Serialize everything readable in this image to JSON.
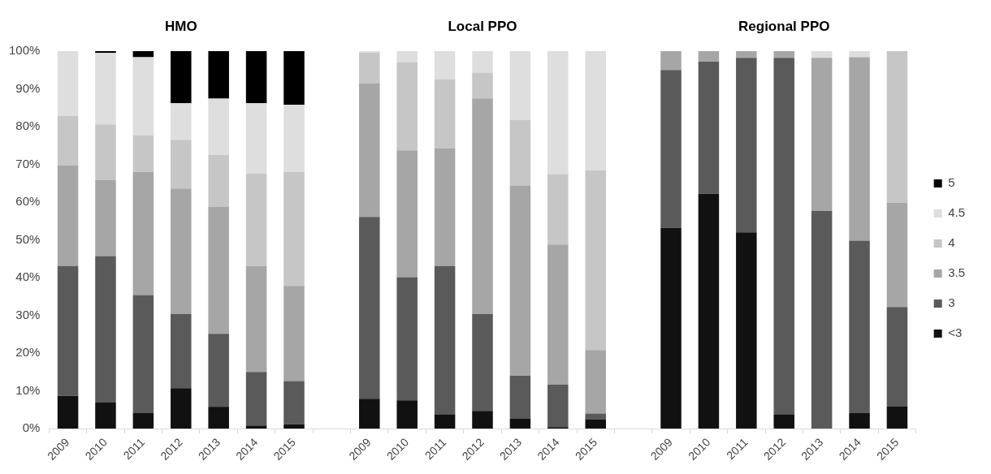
{
  "chart_data": {
    "type": "bar",
    "stacked": true,
    "categories": [
      "2009",
      "2010",
      "2011",
      "2012",
      "2013",
      "2014",
      "2015",
      null,
      "2009",
      "2010",
      "2011",
      "2012",
      "2013",
      "2014",
      "2015",
      null,
      "2009",
      "2010",
      "2011",
      "2012",
      "2013",
      "2014",
      "2015"
    ],
    "series": [
      {
        "name": "<3",
        "color": "#111111",
        "values": [
          8.7,
          6.9,
          4.1,
          10.7,
          5.8,
          0.8,
          1.2,
          null,
          7.9,
          7.5,
          3.7,
          4.7,
          2.6,
          0.4,
          2.5,
          null,
          53.2,
          62.2,
          52.0,
          3.7,
          0,
          4.1,
          5.8
        ]
      },
      {
        "name": "3",
        "color": "#5a5a5a",
        "values": [
          34.4,
          38.8,
          31.3,
          19.7,
          19.3,
          14.2,
          11.4,
          null,
          48.2,
          32.6,
          39.4,
          25.7,
          11.4,
          11.3,
          1.5,
          null,
          41.8,
          35.0,
          46.2,
          94.5,
          57.7,
          45.7,
          26.4
        ]
      },
      {
        "name": "3.5",
        "color": "#a6a6a6",
        "values": [
          26.6,
          20.1,
          32.6,
          33.2,
          33.7,
          28.1,
          25.2,
          null,
          35.4,
          33.6,
          31.1,
          57.1,
          50.4,
          37.1,
          16.8,
          null,
          5.0,
          2.8,
          1.8,
          1.8,
          40.5,
          48.6,
          27.7
        ]
      },
      {
        "name": "4",
        "color": "#c6c6c6",
        "values": [
          13.1,
          14.8,
          9.7,
          12.9,
          13.7,
          24.5,
          30.2,
          null,
          8.1,
          23.4,
          18.4,
          6.8,
          17.3,
          18.6,
          47.6,
          null,
          0,
          0,
          0,
          0,
          0,
          0,
          40.1
        ]
      },
      {
        "name": "4.5",
        "color": "#dedede",
        "values": [
          17.2,
          18.9,
          20.7,
          9.7,
          14.9,
          18.6,
          17.8,
          null,
          0.4,
          2.9,
          7.4,
          5.7,
          18.3,
          32.6,
          31.6,
          null,
          0,
          0,
          0,
          0,
          1.8,
          1.6,
          0
        ]
      },
      {
        "name": "5",
        "color": "#000000",
        "values": [
          0,
          0.5,
          1.6,
          13.8,
          12.6,
          13.8,
          14.2,
          null,
          0,
          0,
          0,
          0,
          0,
          0,
          0,
          null,
          0,
          0,
          0,
          0,
          0,
          0,
          0
        ]
      }
    ],
    "ylim": [
      0,
      100
    ],
    "yticks": [
      {
        "value": 0,
        "label": "0%"
      },
      {
        "value": 10,
        "label": "10%"
      },
      {
        "value": 20,
        "label": "20%"
      },
      {
        "value": 30,
        "label": "30%"
      },
      {
        "value": 40,
        "label": "40%"
      },
      {
        "value": 50,
        "label": "50%"
      },
      {
        "value": 60,
        "label": "60%"
      },
      {
        "value": 70,
        "label": "70%"
      },
      {
        "value": 80,
        "label": "80%"
      },
      {
        "value": 90,
        "label": "90%"
      },
      {
        "value": 100,
        "label": "100%"
      }
    ],
    "annotations": [
      "HMO",
      "Local PPO",
      "Regional PPO"
    ],
    "grid": false,
    "legend": "right"
  }
}
